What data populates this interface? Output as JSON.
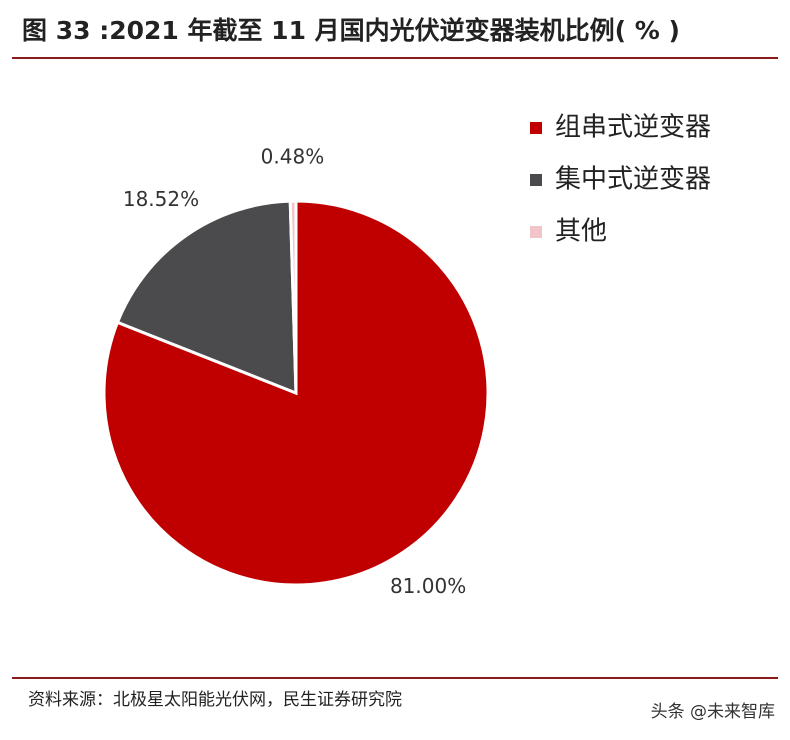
{
  "chart_data": {
    "type": "pie",
    "title": "图 33 :2021 年截至 11 月国内光伏逆变器装机比例( % )",
    "categories": [
      "组串式逆变器",
      "集中式逆变器",
      "其他"
    ],
    "values": [
      81,
      18.52,
      0.48
    ],
    "value_labels": [
      "81.00%",
      "18.52%",
      "0.48%"
    ],
    "colors": [
      "#c00000",
      "#4b4b4d",
      "#f0c4c8"
    ],
    "legend": "right",
    "source": "资料来源：北极星太阳能光伏网，民生证券研究院",
    "watermark": "头条 @未来智库"
  }
}
